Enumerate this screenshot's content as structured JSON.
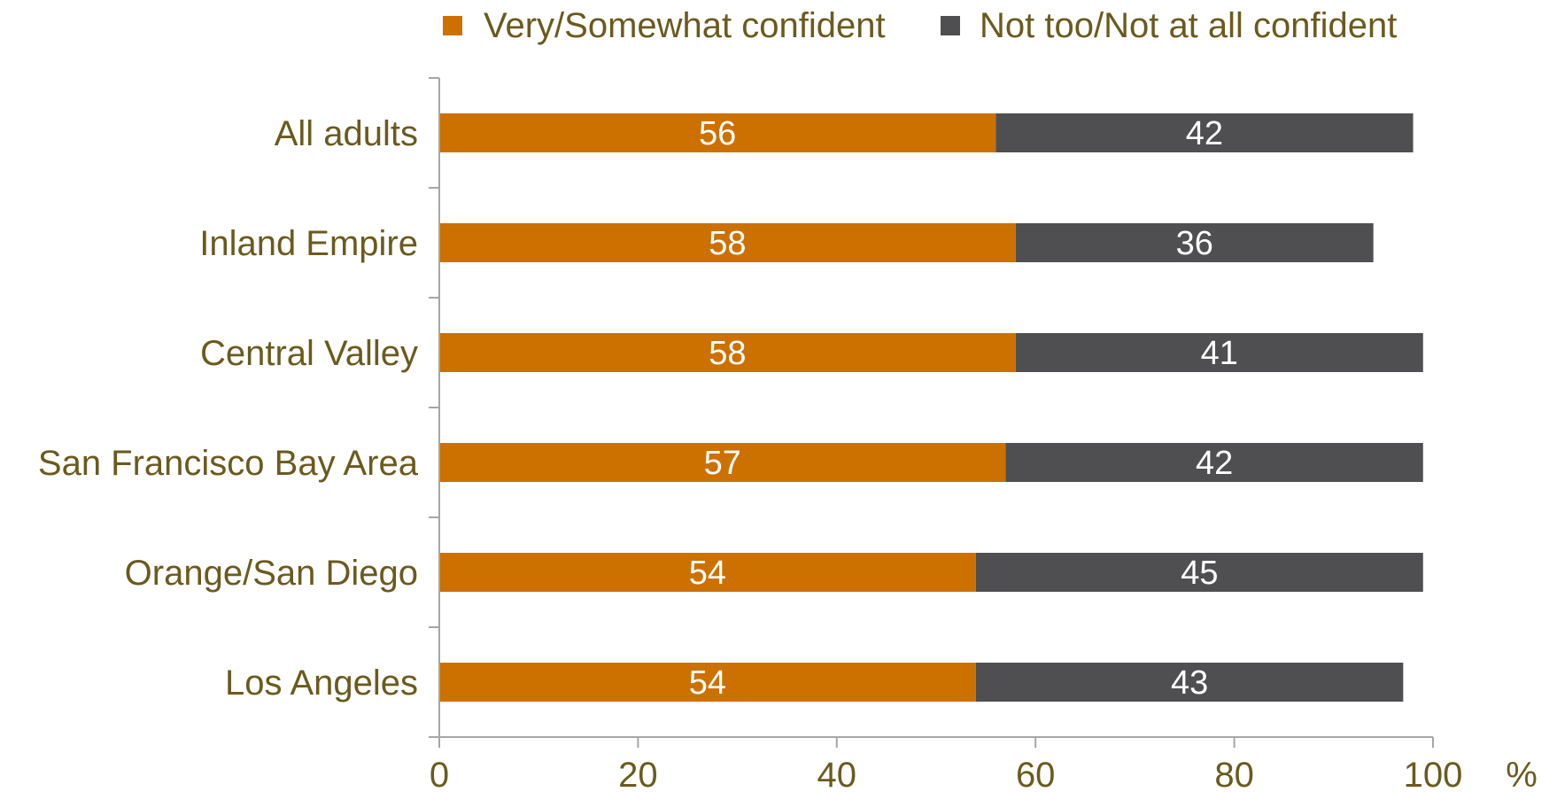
{
  "chart_data": {
    "type": "bar",
    "orientation": "horizontal",
    "stacked": true,
    "categories": [
      "All adults",
      "Inland Empire",
      "Central Valley",
      "San Francisco Bay Area",
      "Orange/San Diego",
      "Los Angeles"
    ],
    "series": [
      {
        "name": "Very/Somewhat confident",
        "values": [
          56,
          58,
          58,
          57,
          54,
          54
        ],
        "color": "#cc7000"
      },
      {
        "name": "Not too/Not at all confident",
        "values": [
          42,
          36,
          41,
          42,
          45,
          43
        ],
        "color": "#4f4f51"
      }
    ],
    "x_ticks": [
      0,
      20,
      40,
      60,
      80,
      100
    ],
    "xlim": [
      0,
      100
    ],
    "xunit": "%",
    "legend_position": "top",
    "grid": false
  }
}
